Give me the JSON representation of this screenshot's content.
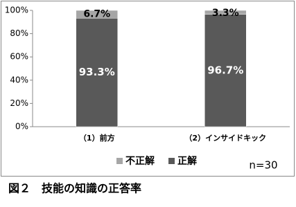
{
  "chart_data": {
    "type": "stacked-bar",
    "categories": [
      "（1）前方",
      "（2）インサイドキック"
    ],
    "series": [
      {
        "name": "正解",
        "color": "#595959",
        "values": [
          93.3,
          96.7
        ],
        "value_labels": [
          "93.3%",
          "96.7%"
        ]
      },
      {
        "name": "不正解",
        "color": "#a6a6a6",
        "values": [
          6.7,
          3.3
        ],
        "value_labels": [
          "6.7%",
          "3.3%"
        ]
      }
    ],
    "ylim": [
      0,
      100
    ],
    "yticks": [
      {
        "value": 0,
        "label": "0%"
      },
      {
        "value": 20,
        "label": "20%"
      },
      {
        "value": 40,
        "label": "40%"
      },
      {
        "value": 60,
        "label": "60%"
      },
      {
        "value": 80,
        "label": "80%"
      },
      {
        "value": 100,
        "label": "100%"
      }
    ],
    "grid": false,
    "legend": "bottom",
    "annotation": "n=30",
    "caption": "図２　技能の知識の正答率"
  }
}
